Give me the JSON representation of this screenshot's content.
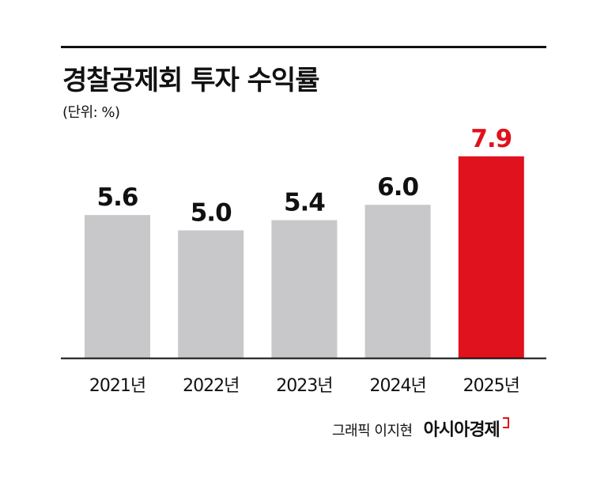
{
  "title": "경찰공제회 투자 수익률",
  "unit_label": "(단위: %)",
  "credit": {
    "graphic_by": "그래픽 이지현",
    "brand": "아시아경제"
  },
  "colors": {
    "default_bar": "#c8c8cb",
    "highlight_bar": "#e0121d",
    "highlight_text": "#e0121d",
    "text": "#111111",
    "axis": "#111111"
  },
  "chart_data": {
    "type": "bar",
    "title": "경찰공제회 투자 수익률",
    "xlabel": "",
    "ylabel": "",
    "unit": "%",
    "categories": [
      "2021년",
      "2022년",
      "2023년",
      "2024년",
      "2025년"
    ],
    "values": [
      5.6,
      5.0,
      5.4,
      6.0,
      7.9
    ],
    "highlight_index": 4,
    "grid": false,
    "legend": "none"
  }
}
